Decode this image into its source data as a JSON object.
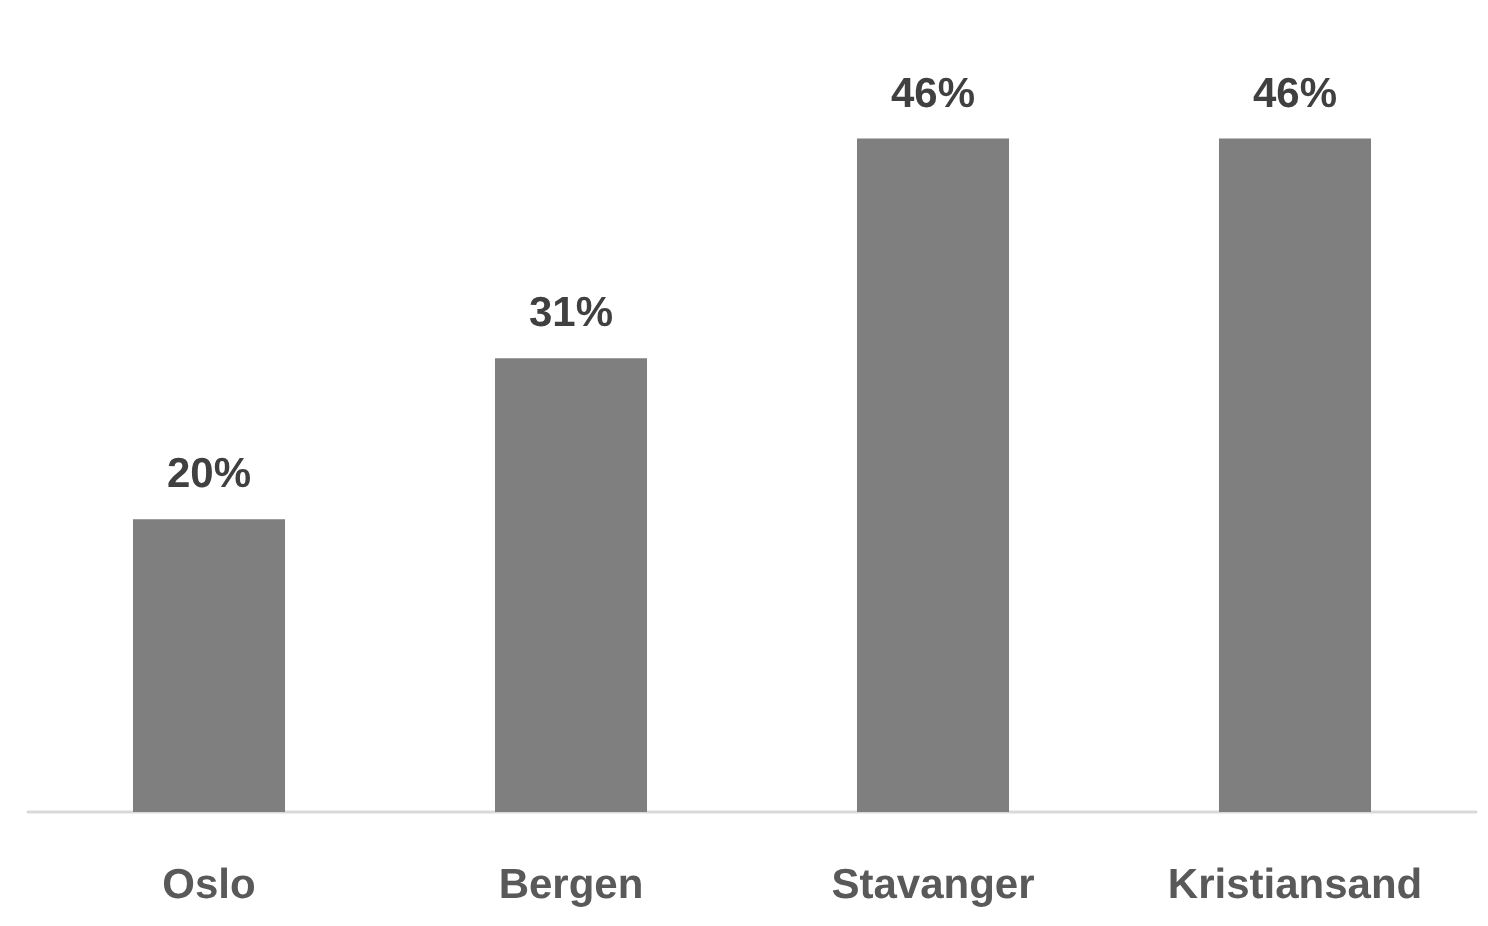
{
  "chart_data": {
    "type": "bar",
    "categories": [
      "Oslo",
      "Bergen",
      "Stavanger",
      "Kristiansand"
    ],
    "values": [
      20,
      31,
      46,
      46
    ],
    "value_labels": [
      "20%",
      "31%",
      "46%",
      "46%"
    ],
    "color": "#7f7f7f",
    "tick_labels": "x"
  }
}
